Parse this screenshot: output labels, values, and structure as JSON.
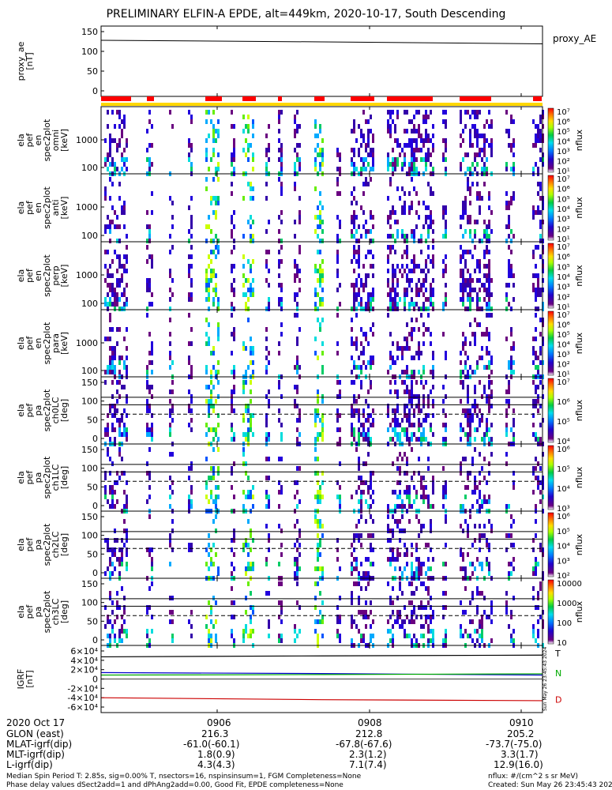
{
  "title": "PRELIMINARY ELFIN-A EPDE, alt=449km, 2020-10-17, South Descending",
  "chart_data": [
    {
      "type": "line",
      "ylabel": [
        "proxy_ae",
        "[nT]"
      ],
      "legend": "proxy_AE",
      "yticks": [
        "0",
        "50",
        "100",
        "150"
      ],
      "ylim": [
        -10,
        160
      ],
      "x": [
        0,
        0.5,
        1
      ],
      "values": [
        128,
        124,
        119
      ]
    },
    {
      "type": "heatmap",
      "ylabel": [
        "ela",
        "pef",
        "en",
        "spec2plot",
        "omni",
        "[keV]"
      ],
      "yticks": [
        "100",
        "1000"
      ],
      "colorbar_label": "nflux",
      "colorbar_ticks": [
        "10¹",
        "10²",
        "10³",
        "10⁴",
        "10⁵",
        "10⁶",
        "10⁷"
      ]
    },
    {
      "type": "heatmap",
      "ylabel": [
        "ela",
        "pef",
        "en",
        "spec2plot",
        "anti",
        "[keV]"
      ],
      "yticks": [
        "100",
        "1000"
      ],
      "colorbar_label": "nflux",
      "colorbar_ticks": [
        "10¹",
        "10²",
        "10³",
        "10⁴",
        "10⁵",
        "10⁶",
        "10⁷"
      ]
    },
    {
      "type": "heatmap",
      "ylabel": [
        "ela",
        "pef",
        "en",
        "spec2plot",
        "perp",
        "[keV]"
      ],
      "yticks": [
        "100",
        "1000"
      ],
      "colorbar_label": "nflux",
      "colorbar_ticks": [
        "10¹",
        "10²",
        "10³",
        "10⁴",
        "10⁵",
        "10⁶",
        "10⁷"
      ]
    },
    {
      "type": "heatmap",
      "ylabel": [
        "ela",
        "pef",
        "en",
        "spec2plot",
        "para",
        "[keV]"
      ],
      "yticks": [
        "100",
        "1000"
      ],
      "colorbar_label": "nflux",
      "colorbar_ticks": [
        "10¹",
        "10²",
        "10³",
        "10⁴",
        "10⁵",
        "10⁶",
        "10⁷"
      ]
    },
    {
      "type": "heatmap",
      "ylabel": [
        "ela",
        "pef",
        "pa",
        "spec2plot",
        "ch0LC",
        "[deg]"
      ],
      "yticks": [
        "0",
        "50",
        "100",
        "150"
      ],
      "colorbar_label": "nflux",
      "colorbar_ticks": [
        "10⁴",
        "10⁵",
        "10⁶",
        "10⁷"
      ]
    },
    {
      "type": "heatmap",
      "ylabel": [
        "ela",
        "pef",
        "pa",
        "spec2plot",
        "ch1LC",
        "[deg]"
      ],
      "yticks": [
        "0",
        "50",
        "100",
        "150"
      ],
      "colorbar_label": "nflux",
      "colorbar_ticks": [
        "10³",
        "10⁴",
        "10⁵",
        "10⁶"
      ]
    },
    {
      "type": "heatmap",
      "ylabel": [
        "ela",
        "pef",
        "pa",
        "spec2plot",
        "ch2LC",
        "[deg]"
      ],
      "yticks": [
        "0",
        "50",
        "100",
        "150"
      ],
      "colorbar_label": "nflux",
      "colorbar_ticks": [
        "10²",
        "10³",
        "10⁴",
        "10⁵",
        "10⁶"
      ]
    },
    {
      "type": "heatmap",
      "ylabel": [
        "ela",
        "pef",
        "pa",
        "spec2plot",
        "ch3LC",
        "[deg]"
      ],
      "yticks": [
        "0",
        "50",
        "100",
        "150"
      ],
      "colorbar_label": "nflux",
      "colorbar_ticks": [
        "10",
        "100",
        "1000",
        "10000"
      ]
    },
    {
      "type": "line",
      "ylabel": [
        "IGRF",
        "[nT]"
      ],
      "yticks": [
        "-6×10⁴",
        "-4×10⁴",
        "-2×10⁴",
        "0",
        "2×10⁴",
        "4×10⁴",
        "6×10⁴"
      ],
      "ylim": [
        -65000,
        65000
      ],
      "x": [
        0,
        0.5,
        1
      ],
      "series": [
        {
          "name": "T",
          "color": "#000000",
          "values": [
            45000,
            47000,
            48500
          ]
        },
        {
          "name": "N",
          "color": "#0000cc",
          "values": [
            13000,
            11000,
            8000
          ]
        },
        {
          "name": "N",
          "color": "#00aa00",
          "values": [
            8000,
            9000,
            10500
          ]
        },
        {
          "name": "D",
          "color": "#cc0000",
          "values": [
            -38000,
            -42000,
            -44000
          ]
        }
      ],
      "side_labels": [
        "T",
        "N",
        "D"
      ]
    }
  ],
  "xaxis": {
    "date": "2020 Oct 17",
    "tick_labels": [
      "0906",
      "0908",
      "0910"
    ],
    "rows": [
      {
        "label": "GLON (east)",
        "values": [
          "216.3",
          "212.8",
          "205.2"
        ]
      },
      {
        "label": "MLAT-igrf(dip)",
        "values": [
          "-61.0(-60.1)",
          "-67.8(-67.6)",
          "-73.7(-75.0)"
        ]
      },
      {
        "label": "MLT-igrf(dip)",
        "values": [
          "1.8(0.9)",
          "2.3(1.2)",
          "3.3(1.7)"
        ]
      },
      {
        "label": "L-igrf(dip)",
        "values": [
          "4.3(4.3)",
          "7.1(7.4)",
          "12.9(16.0)"
        ]
      }
    ]
  },
  "footer": {
    "line1": "Median Spin Period T: 2.85s, sig=0.00% T, nsectors=16, nspinsinsum=1, FGM Completeness=None",
    "line2": "Phase delay values dSect2add=1 and dPhAng2add=0.00, Good Fit, EPDE completeness=None",
    "units": "nflux: #/(cm^2 s sr MeV)",
    "created": "Created: Sun May 26 23:45:43 2024",
    "vertical_stamp": "Sun May 26 23:45:43 2024"
  },
  "colors": {
    "coverage": "#ff0000",
    "nocoverage": "#ffd700"
  }
}
